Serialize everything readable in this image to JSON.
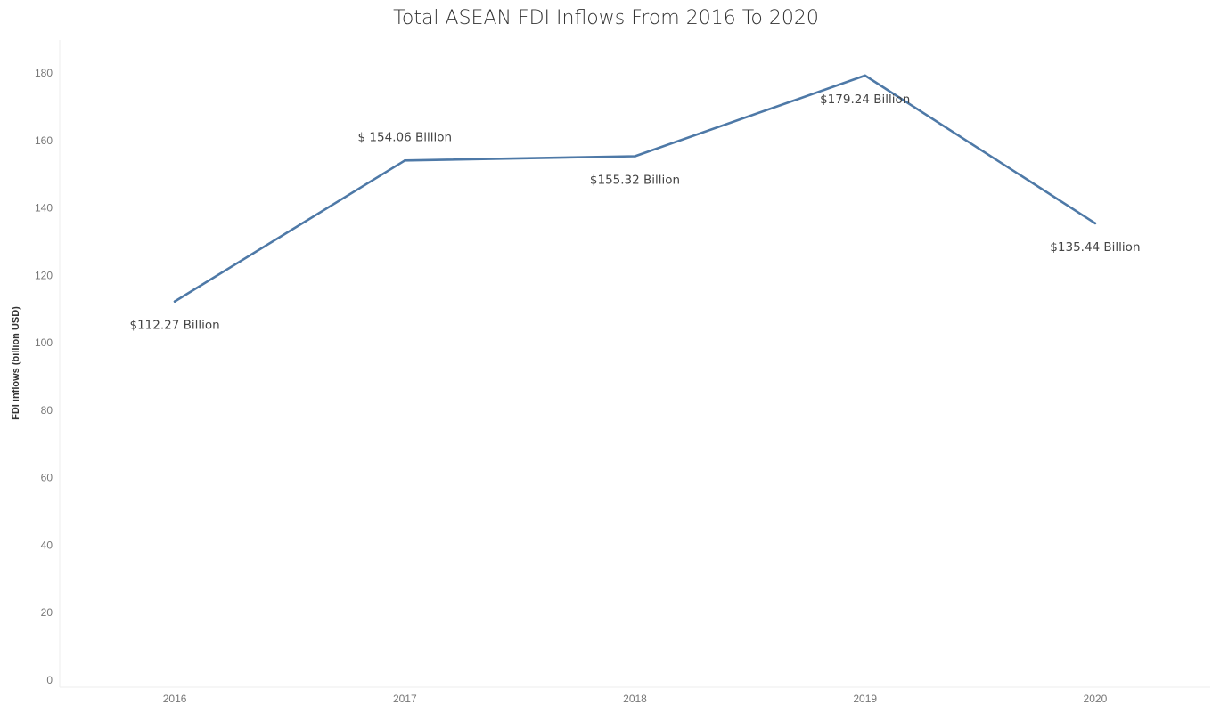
{
  "chart_data": {
    "type": "line",
    "title": "Total ASEAN FDI Inflows From 2016 To 2020",
    "xlabel": "",
    "ylabel": "FDI inflows (billion USD)",
    "categories": [
      "2016",
      "2017",
      "2018",
      "2019",
      "2020"
    ],
    "series": [
      {
        "values": [
          112.27,
          154.06,
          155.32,
          179.24,
          135.44
        ]
      }
    ],
    "data_labels": [
      "$112.27 Billion",
      "$ 154.06 Billion",
      "$155.32 Billion",
      "$179.24 Billion",
      "$135.44 Billion"
    ],
    "label_positions": [
      "below",
      "above",
      "below",
      "below",
      "below"
    ],
    "ylim": [
      0,
      190
    ],
    "yticks": [
      0,
      20,
      40,
      60,
      80,
      100,
      120,
      140,
      160,
      180
    ],
    "grid": false,
    "line_color": "#4e79a7"
  }
}
